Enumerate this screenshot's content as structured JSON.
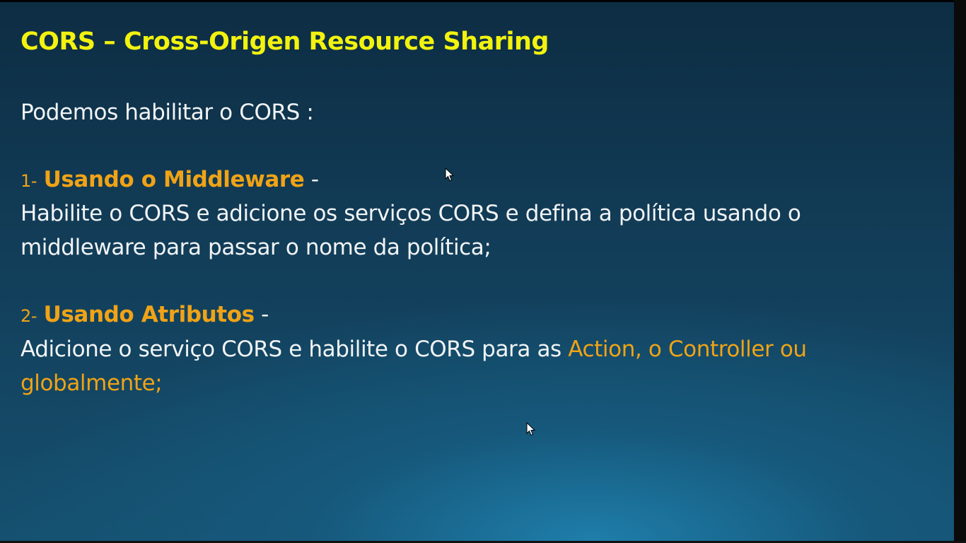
{
  "slide": {
    "title": "CORS – Cross-Origen Resource Sharing",
    "intro": "Podemos  habilitar o CORS :",
    "sections": [
      {
        "number": "1-",
        "title": "Usando o Middleware",
        "dash": "-",
        "body_lines": [
          "Habilite o CORS e adicione os serviços CORS e defina a política usando o",
          "middleware para passar o nome da política;"
        ]
      },
      {
        "number": "2-",
        "title": "Usando Atributos",
        "dash": "-",
        "body_line1_plain": "Adicione o serviço CORS e habilite o CORS para as ",
        "body_line1_highlight": "Action, o Controller ou",
        "body_line2_highlight": "globalmente;"
      }
    ]
  },
  "colors": {
    "title": "#f2f20f",
    "accent": "#f0a316",
    "text": "#f1f4f6",
    "background_top": "#0d2d43",
    "background_bottom": "#1e7eaa"
  },
  "icons": {
    "cursor": "mouse-pointer-icon"
  }
}
